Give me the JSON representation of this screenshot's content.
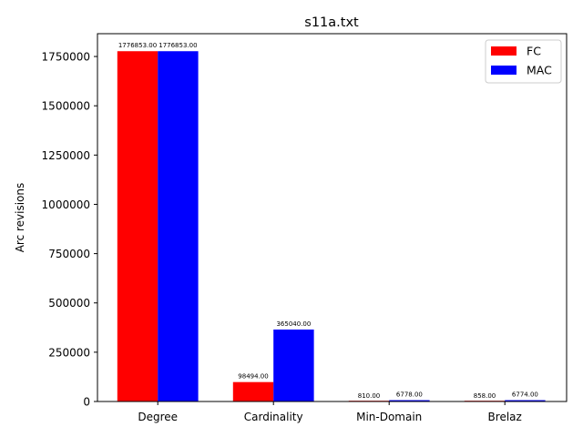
{
  "chart_data": {
    "type": "bar",
    "title": "s11a.txt",
    "xlabel": "",
    "ylabel": "Arc revisions",
    "categories": [
      "Degree",
      "Cardinality",
      "Min-Domain",
      "Brelaz"
    ],
    "series": [
      {
        "name": "FC",
        "color": "#ff0000",
        "values": [
          1776853,
          98494,
          810,
          858
        ],
        "labels": [
          "1776853.00",
          "98494.00",
          "810.00",
          "858.00"
        ]
      },
      {
        "name": "MAC",
        "color": "#0000ff",
        "values": [
          1776853,
          365040,
          6778,
          6774
        ],
        "labels": [
          "1776853.00",
          "365040.00",
          "6778.00",
          "6774.00"
        ]
      }
    ],
    "ylim": [
      0,
      1865695.65
    ],
    "yticks": [
      0,
      250000,
      500000,
      750000,
      1000000,
      1250000,
      1500000,
      1750000
    ],
    "ytick_labels": [
      "0",
      "250000",
      "500000",
      "750000",
      "1000000",
      "1250000",
      "1500000",
      "1750000"
    ],
    "grid": false,
    "legend_position": "upper right"
  }
}
